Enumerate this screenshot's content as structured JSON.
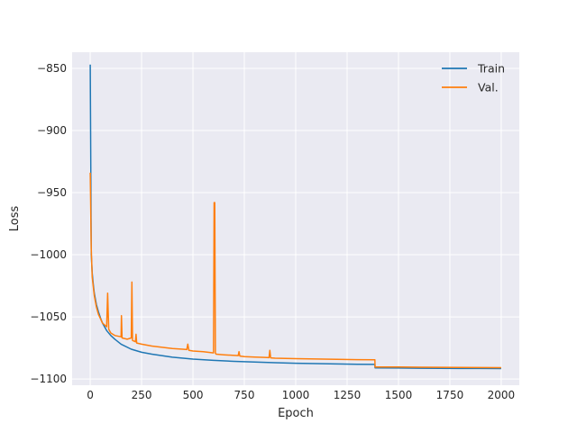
{
  "chart_data": {
    "type": "line",
    "xlabel": "Epoch",
    "ylabel": "Loss",
    "xlim": [
      -88,
      2088
    ],
    "ylim": [
      -1105,
      -837
    ],
    "xticks": [
      0,
      250,
      500,
      750,
      1000,
      1250,
      1500,
      1750,
      2000
    ],
    "xtick_labels": [
      "0",
      "250",
      "500",
      "750",
      "1000",
      "1250",
      "1500",
      "1750",
      "2000"
    ],
    "yticks": [
      -850,
      -900,
      -950,
      -1000,
      -1050,
      -1100
    ],
    "ytick_labels": [
      "−850",
      "−900",
      "−950",
      "−1000",
      "−1050",
      "−1100"
    ],
    "grid": true,
    "legend_position": "top-right",
    "series": [
      {
        "name": "Train",
        "color": "#1f77b4",
        "x": [
          0,
          5,
          10,
          15,
          20,
          30,
          40,
          50,
          60,
          80,
          100,
          120,
          150,
          200,
          250,
          300,
          400,
          500,
          600,
          700,
          800,
          900,
          1000,
          1100,
          1200,
          1300,
          1385,
          1386,
          1500,
          1600,
          1700,
          1800,
          1900,
          2000
        ],
        "y": [
          -847,
          -1000,
          -1015,
          -1024,
          -1031,
          -1040,
          -1046,
          -1051,
          -1055,
          -1061,
          -1065,
          -1068,
          -1072,
          -1076,
          -1078.5,
          -1080,
          -1082.5,
          -1084,
          -1085,
          -1085.8,
          -1086.4,
          -1086.9,
          -1087.3,
          -1087.6,
          -1087.9,
          -1088.1,
          -1088.3,
          -1091,
          -1091.2,
          -1091.3,
          -1091.4,
          -1091.5,
          -1091.5,
          -1091.6
        ]
      },
      {
        "name": "Val.",
        "color": "#ff7f0e",
        "x": [
          0,
          5,
          10,
          20,
          30,
          40,
          60,
          80,
          85,
          90,
          100,
          120,
          150,
          152,
          155,
          180,
          200,
          203,
          206,
          220,
          223,
          226,
          250,
          300,
          350,
          400,
          450,
          470,
          475,
          480,
          500,
          550,
          600,
          603,
          606,
          609,
          612,
          650,
          700,
          720,
          724,
          728,
          750,
          800,
          850,
          870,
          874,
          878,
          900,
          1000,
          1100,
          1200,
          1300,
          1385,
          1386,
          1500,
          1600,
          1700,
          1800,
          1900,
          2000
        ],
        "y": [
          -934,
          -995,
          -1018,
          -1033,
          -1042,
          -1048,
          -1055,
          -1058,
          -1031,
          -1060,
          -1063,
          -1065,
          -1066,
          -1049,
          -1067,
          -1068,
          -1067,
          -1022,
          -1069,
          -1070,
          -1064,
          -1071,
          -1072,
          -1073.5,
          -1074.5,
          -1075.5,
          -1076,
          -1076.3,
          -1072,
          -1077,
          -1077.5,
          -1078,
          -1079,
          -958,
          -958,
          -1079,
          -1080,
          -1080.5,
          -1081,
          -1081.2,
          -1078,
          -1081.5,
          -1082,
          -1082.3,
          -1082.6,
          -1082.8,
          -1077,
          -1083,
          -1083.3,
          -1083.6,
          -1083.9,
          -1084.2,
          -1084.4,
          -1084.6,
          -1090.3,
          -1090.4,
          -1090.5,
          -1090.6,
          -1090.7,
          -1090.8,
          -1090.9
        ]
      }
    ]
  }
}
